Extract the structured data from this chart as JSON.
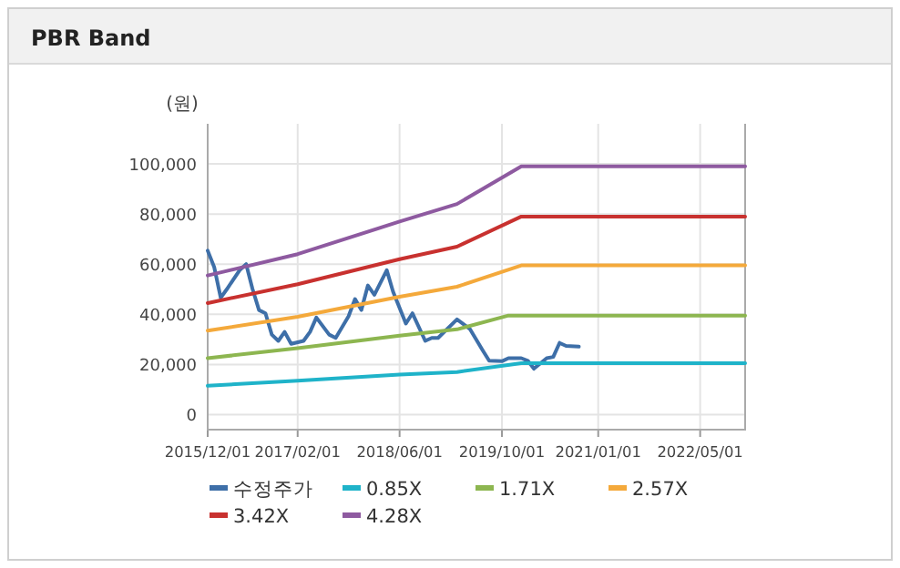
{
  "chart_data": {
    "type": "line",
    "title": "PBR Band",
    "ylabel": "(원)",
    "xlim": [
      "2015-12-01",
      "2022-12-01"
    ],
    "xticks": [
      {
        "value": "2015-12-01",
        "label": "2015/12/01"
      },
      {
        "value": "2017-02-01",
        "label": "2017/02/01"
      },
      {
        "value": "2018-06-01",
        "label": "2018/06/01"
      },
      {
        "value": "2019-10-01",
        "label": "2019/10/01"
      },
      {
        "value": "2021-01-01",
        "label": "2021/01/01"
      },
      {
        "value": "2022-05-01",
        "label": "2022/05/01"
      }
    ],
    "ylim": [
      -6000,
      116000
    ],
    "yticks": [
      0,
      {
        "value": 20000,
        "label": "20,000"
      },
      {
        "value": 40000,
        "label": "40,000"
      },
      {
        "value": 60000,
        "label": "60,000"
      },
      {
        "value": 80000,
        "label": "80,000"
      },
      {
        "value": 100000,
        "label": "100,000"
      }
    ],
    "grid": true,
    "legend": "bottom",
    "marker": "none",
    "line_style": "solid",
    "series": [
      {
        "name": "수정주가",
        "color": "#3e6fa8",
        "x": [
          "2015-12",
          "2016-01",
          "2016-02",
          "2016-03",
          "2016-04",
          "2016-05",
          "2016-06",
          "2016-07",
          "2016-08",
          "2016-09",
          "2016-10",
          "2016-11",
          "2016-12",
          "2017-01",
          "2017-03",
          "2017-04",
          "2017-05",
          "2017-07",
          "2017-08",
          "2017-10",
          "2017-11",
          "2017-12",
          "2018-01",
          "2018-02",
          "2018-04",
          "2018-05",
          "2018-07",
          "2018-08",
          "2018-10",
          "2018-11",
          "2018-12",
          "2019-03",
          "2019-05",
          "2019-07",
          "2019-08",
          "2019-10",
          "2019-11",
          "2020-01",
          "2020-02",
          "2020-03",
          "2020-05",
          "2020-06",
          "2020-07",
          "2020-08",
          "2020-10"
        ],
        "values": [
          65400,
          58800,
          46600,
          50000,
          53900,
          57600,
          60000,
          50200,
          41700,
          40400,
          31900,
          29400,
          33000,
          28200,
          29400,
          33000,
          38700,
          31900,
          30600,
          39200,
          46100,
          41700,
          51500,
          47800,
          57600,
          49000,
          36300,
          40400,
          29400,
          30600,
          30600,
          38000,
          34200,
          25700,
          21500,
          21300,
          22500,
          22500,
          21500,
          18300,
          22500,
          23000,
          28600,
          27400,
          27100
        ]
      },
      {
        "name": "0.85X",
        "color": "#1fb3c9",
        "x": [
          "2015-12",
          "2017-02",
          "2018-06",
          "2019-03",
          "2020-01",
          "2022-12"
        ],
        "values": [
          11500,
          13500,
          16000,
          17000,
          20500,
          20500
        ]
      },
      {
        "name": "1.71X",
        "color": "#8db650",
        "x": [
          "2015-12",
          "2017-02",
          "2018-06",
          "2019-03",
          "2019-11",
          "2022-12"
        ],
        "values": [
          22500,
          26500,
          31500,
          34000,
          39500,
          39500
        ]
      },
      {
        "name": "2.57X",
        "color": "#f4a93b",
        "x": [
          "2015-12",
          "2017-02",
          "2018-06",
          "2019-03",
          "2020-01",
          "2022-12"
        ],
        "values": [
          33500,
          39000,
          47000,
          51000,
          59500,
          59500
        ]
      },
      {
        "name": "3.42X",
        "color": "#c8312f",
        "x": [
          "2015-12",
          "2017-02",
          "2018-06",
          "2019-03",
          "2020-01",
          "2022-12"
        ],
        "values": [
          44500,
          52000,
          62000,
          67000,
          79000,
          79000
        ]
      },
      {
        "name": "4.28X",
        "color": "#8e5aa0",
        "x": [
          "2015-12",
          "2017-02",
          "2018-06",
          "2019-03",
          "2020-01",
          "2022-12"
        ],
        "values": [
          55500,
          64000,
          77000,
          84000,
          99000,
          99000
        ]
      }
    ]
  }
}
